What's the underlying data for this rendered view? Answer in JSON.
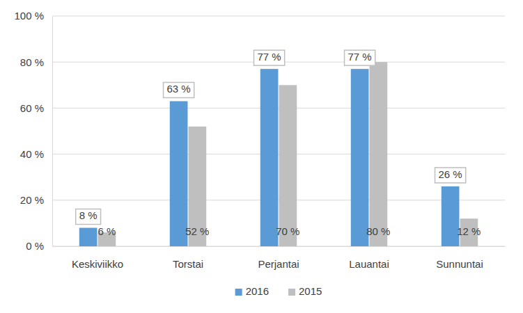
{
  "chart_data": {
    "type": "bar",
    "categories": [
      "Keskiviikko",
      "Torstai",
      "Perjantai",
      "Lauantai",
      "Sunnuntai"
    ],
    "series": [
      {
        "name": "2016",
        "color": "#5b9bd5",
        "values": [
          8,
          63,
          77,
          77,
          26
        ],
        "value_labels": [
          "8 %",
          "63 %",
          "77 %",
          "77 %",
          "26 %"
        ]
      },
      {
        "name": "2015",
        "color": "#bfbfbf",
        "values": [
          6,
          52,
          70,
          80,
          12
        ],
        "value_labels": [
          "6 %",
          "52 %",
          "70 %",
          "80 %",
          "12 %"
        ]
      }
    ],
    "ylim": [
      0,
      100
    ],
    "yticks": [
      {
        "value": 0,
        "label": "0 %"
      },
      {
        "value": 20,
        "label": "20 %"
      },
      {
        "value": 40,
        "label": "40 %"
      },
      {
        "value": 60,
        "label": "60 %"
      },
      {
        "value": 80,
        "label": "80 %"
      },
      {
        "value": 100,
        "label": "100 %"
      }
    ],
    "grid": true,
    "data_labels": true,
    "legend": "bottom"
  }
}
